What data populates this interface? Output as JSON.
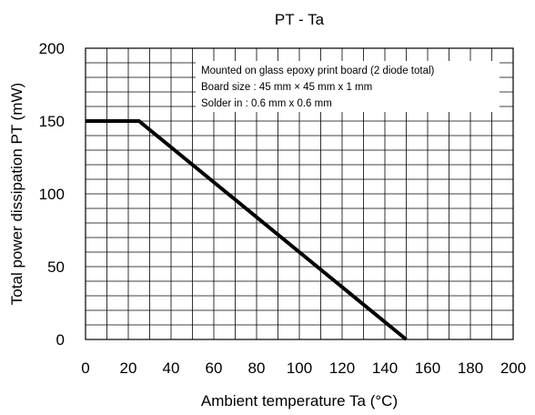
{
  "chart_data": {
    "type": "line",
    "title": "PT - Ta",
    "xlabel": "Ambient temperature Ta (°C)",
    "ylabel": "Total power dissipation PT (mW)",
    "xlim": [
      0,
      200
    ],
    "ylim": [
      0,
      200
    ],
    "x_ticks": [
      0,
      20,
      40,
      60,
      80,
      100,
      120,
      140,
      160,
      180,
      200
    ],
    "y_ticks": [
      0,
      50,
      100,
      150,
      200
    ],
    "grid": true,
    "series": [
      {
        "x": [
          0,
          25,
          150
        ],
        "y": [
          150,
          150,
          0
        ]
      }
    ],
    "annotations": [
      "Mounted on glass epoxy print board (2 diode total)",
      "Board size : 45 mm × 45 mm x 1 mm",
      "Solder in : 0.6 mm x 0.6 mm"
    ]
  }
}
